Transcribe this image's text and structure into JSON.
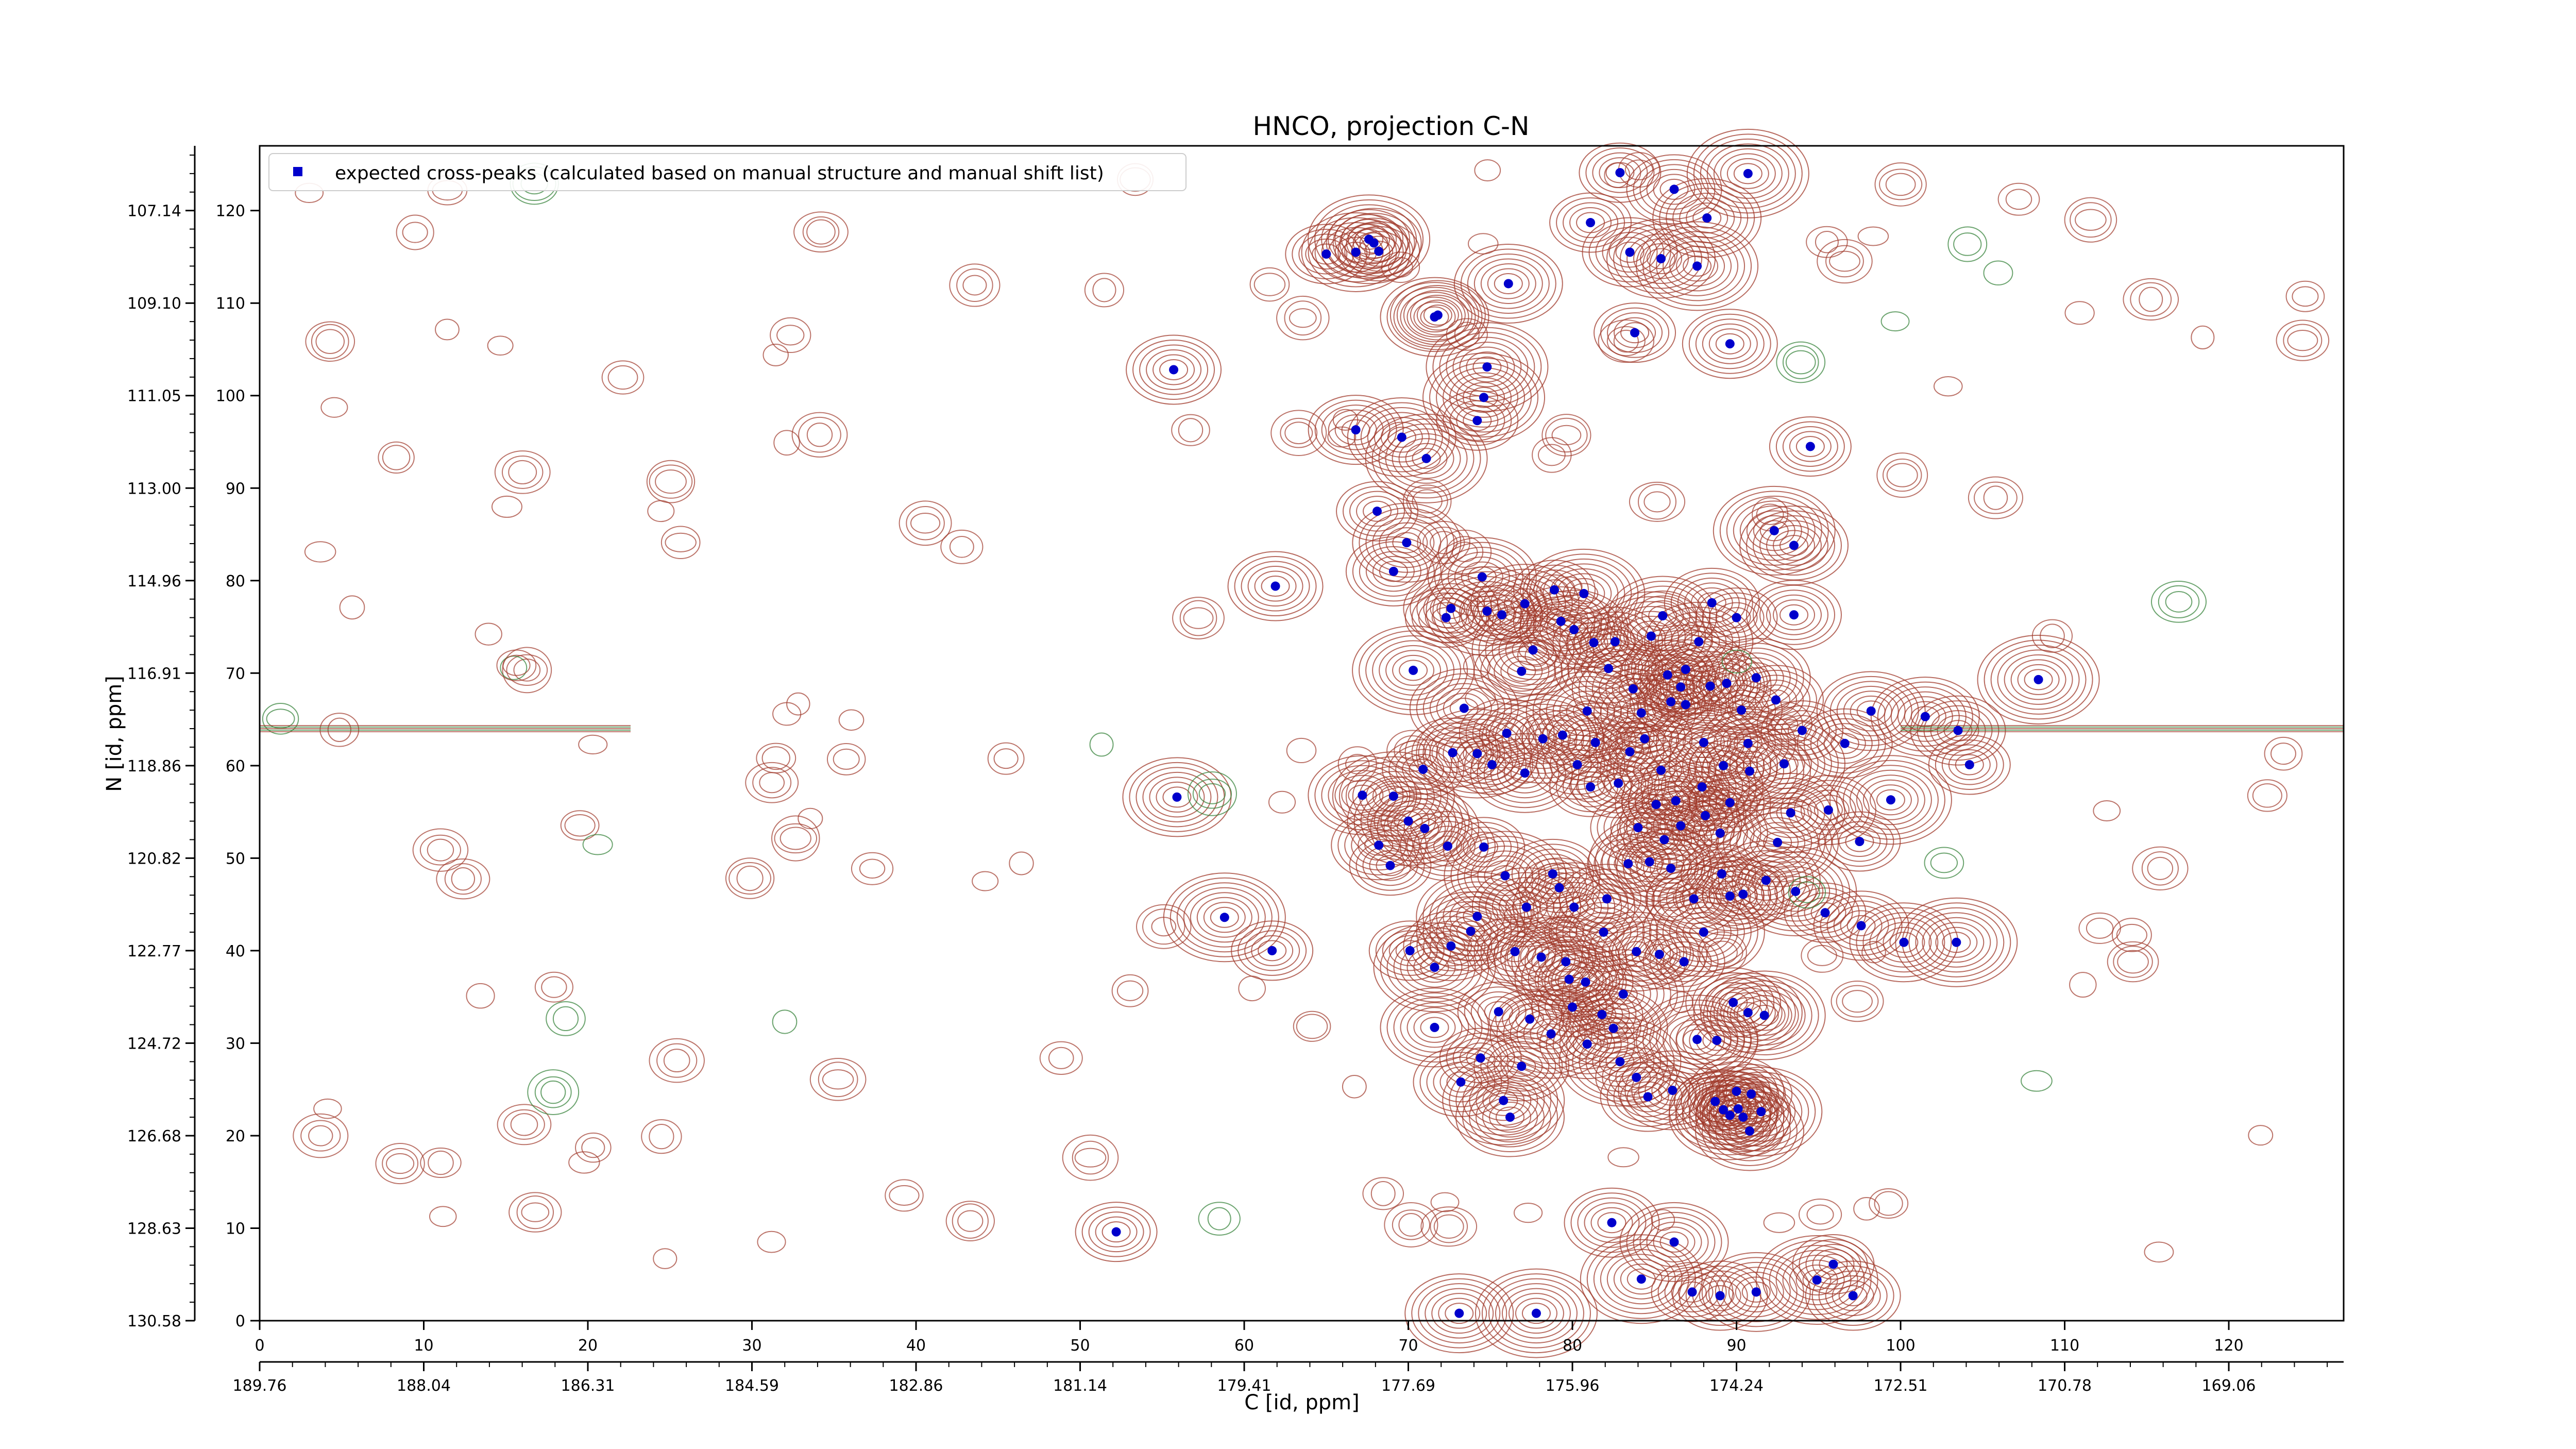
{
  "chart_data": {
    "type": "scatter",
    "title": "HNCO, projection C-N",
    "xlabel": "C [id, ppm]",
    "ylabel": "N [id, ppm]",
    "xlim": [
      0,
      127
    ],
    "ylim": [
      0,
      127
    ],
    "x_ticks": [
      0,
      10,
      20,
      30,
      40,
      50,
      60,
      70,
      80,
      90,
      100,
      110,
      120
    ],
    "y_ticks": [
      0,
      10,
      20,
      30,
      40,
      50,
      60,
      70,
      80,
      90,
      100,
      110,
      120
    ],
    "secondary_x_ticks": [
      "189.76",
      "188.04",
      "186.31",
      "184.59",
      "182.86",
      "181.14",
      "179.41",
      "177.69",
      "175.96",
      "174.24",
      "172.51",
      "170.78",
      "169.06"
    ],
    "secondary_y_ticks": [
      "130.58",
      "128.63",
      "126.68",
      "124.72",
      "122.77",
      "120.82",
      "118.86",
      "116.91",
      "114.96",
      "113.00",
      "111.05",
      "109.10",
      "107.14"
    ],
    "legend": {
      "position": "top-left",
      "label": "expected cross-peaks (calculated based on manual structure and manual shift list)"
    },
    "grid": false,
    "colors": {
      "marker": "#0000cc",
      "contour_positive": "#a0392b",
      "contour_negative": "#2e7d32"
    },
    "series": [
      {
        "name": "expected cross-peaks (calculated based on manual structure and manual shift list)",
        "points": [
          [
            52.2,
            9.6
          ],
          [
            55.7,
            102.8
          ],
          [
            55.9,
            56.6
          ],
          [
            58.8,
            43.6
          ],
          [
            61.7,
            40.0
          ],
          [
            61.9,
            79.4
          ],
          [
            66.8,
            115.5
          ],
          [
            67.6,
            116.9
          ],
          [
            68.2,
            115.6
          ],
          [
            71.8,
            108.7
          ],
          [
            76.1,
            112.1
          ],
          [
            74.8,
            103.1
          ],
          [
            82.9,
            124.1
          ],
          [
            86.2,
            122.3
          ],
          [
            88.2,
            119.2
          ],
          [
            90.7,
            124.0
          ],
          [
            81.1,
            118.7
          ],
          [
            83.5,
            115.5
          ],
          [
            85.4,
            114.8
          ],
          [
            87.6,
            114.0
          ],
          [
            83.8,
            106.8
          ],
          [
            89.6,
            105.6
          ],
          [
            71.6,
            108.5
          ],
          [
            74.6,
            99.8
          ],
          [
            74.2,
            97.3
          ],
          [
            66.8,
            96.3
          ],
          [
            69.6,
            95.5
          ],
          [
            71.1,
            93.2
          ],
          [
            68.1,
            87.5
          ],
          [
            69.1,
            81.0
          ],
          [
            69.9,
            84.1
          ],
          [
            70.3,
            70.3
          ],
          [
            72.3,
            76.0
          ],
          [
            72.6,
            77.0
          ],
          [
            74.5,
            80.4
          ],
          [
            74.8,
            76.7
          ],
          [
            75.7,
            76.3
          ],
          [
            76.9,
            70.2
          ],
          [
            77.1,
            77.5
          ],
          [
            77.6,
            72.5
          ],
          [
            78.9,
            79.0
          ],
          [
            79.3,
            75.6
          ],
          [
            80.1,
            74.7
          ],
          [
            80.7,
            78.6
          ],
          [
            81.3,
            73.3
          ],
          [
            82.6,
            73.4
          ],
          [
            82.2,
            70.5
          ],
          [
            83.7,
            68.3
          ],
          [
            83.5,
            61.5
          ],
          [
            84.4,
            62.9
          ],
          [
            84.2,
            65.7
          ],
          [
            85.4,
            59.5
          ],
          [
            85.1,
            55.8
          ],
          [
            84.0,
            53.3
          ],
          [
            85.6,
            52.0
          ],
          [
            86.6,
            53.5
          ],
          [
            88.1,
            54.6
          ],
          [
            89.0,
            52.7
          ],
          [
            89.2,
            60.0
          ],
          [
            90.8,
            59.4
          ],
          [
            90.3,
            66.0
          ],
          [
            92.4,
            67.1
          ],
          [
            91.2,
            69.5
          ],
          [
            92.9,
            60.2
          ],
          [
            94.0,
            63.8
          ],
          [
            96.6,
            62.4
          ],
          [
            98.2,
            65.9
          ],
          [
            99.4,
            56.3
          ],
          [
            97.5,
            51.8
          ],
          [
            95.6,
            55.2
          ],
          [
            93.3,
            54.9
          ],
          [
            92.5,
            51.7
          ],
          [
            89.1,
            48.3
          ],
          [
            87.4,
            45.6
          ],
          [
            86.0,
            48.9
          ],
          [
            84.7,
            49.6
          ],
          [
            83.4,
            49.4
          ],
          [
            82.1,
            45.6
          ],
          [
            81.9,
            42.0
          ],
          [
            80.1,
            44.7
          ],
          [
            79.2,
            46.8
          ],
          [
            78.8,
            48.3
          ],
          [
            77.2,
            44.7
          ],
          [
            75.9,
            48.1
          ],
          [
            74.6,
            51.2
          ],
          [
            72.4,
            51.3
          ],
          [
            71.0,
            53.2
          ],
          [
            70.0,
            54.0
          ],
          [
            68.9,
            49.2
          ],
          [
            68.2,
            51.4
          ],
          [
            67.2,
            56.8
          ],
          [
            69.1,
            56.7
          ],
          [
            70.9,
            59.6
          ],
          [
            72.7,
            61.4
          ],
          [
            73.4,
            66.2
          ],
          [
            74.2,
            61.3
          ],
          [
            75.1,
            60.1
          ],
          [
            76.0,
            63.5
          ],
          [
            77.1,
            59.2
          ],
          [
            78.2,
            62.9
          ],
          [
            79.4,
            63.3
          ],
          [
            80.3,
            60.1
          ],
          [
            81.4,
            62.5
          ],
          [
            80.9,
            65.9
          ],
          [
            81.1,
            57.7
          ],
          [
            82.8,
            58.1
          ],
          [
            86.3,
            56.2
          ],
          [
            87.9,
            57.7
          ],
          [
            89.6,
            56.0
          ],
          [
            90.4,
            46.1
          ],
          [
            91.8,
            47.6
          ],
          [
            93.6,
            46.4
          ],
          [
            95.4,
            44.1
          ],
          [
            97.6,
            42.7
          ],
          [
            100.2,
            40.9
          ],
          [
            103.4,
            40.9
          ],
          [
            104.2,
            60.1
          ],
          [
            103.5,
            63.8
          ],
          [
            101.5,
            65.3
          ],
          [
            108.4,
            69.3
          ],
          [
            94.5,
            94.5
          ],
          [
            93.5,
            76.3
          ],
          [
            93.5,
            83.8
          ],
          [
            92.3,
            85.4
          ],
          [
            90.0,
            76.0
          ],
          [
            88.5,
            77.6
          ],
          [
            87.7,
            73.4
          ],
          [
            86.9,
            70.4
          ],
          [
            86.6,
            68.5
          ],
          [
            85.8,
            69.8
          ],
          [
            85.5,
            76.2
          ],
          [
            84.8,
            74.0
          ],
          [
            86.0,
            66.9
          ],
          [
            86.9,
            66.6
          ],
          [
            88.0,
            62.5
          ],
          [
            88.4,
            68.6
          ],
          [
            89.4,
            68.9
          ],
          [
            90.7,
            62.4
          ],
          [
            89.6,
            45.9
          ],
          [
            88.0,
            42.0
          ],
          [
            86.8,
            38.8
          ],
          [
            85.3,
            39.6
          ],
          [
            83.9,
            39.9
          ],
          [
            83.1,
            35.3
          ],
          [
            81.8,
            33.1
          ],
          [
            80.8,
            36.6
          ],
          [
            79.8,
            36.9
          ],
          [
            78.7,
            31.0
          ],
          [
            77.4,
            32.6
          ],
          [
            76.9,
            27.5
          ],
          [
            76.2,
            22.0
          ],
          [
            75.8,
            23.8
          ],
          [
            74.4,
            28.4
          ],
          [
            73.2,
            25.8
          ],
          [
            71.6,
            31.7
          ],
          [
            71.6,
            38.2
          ],
          [
            70.1,
            40.0
          ],
          [
            72.6,
            40.5
          ],
          [
            73.8,
            42.1
          ],
          [
            74.2,
            43.7
          ],
          [
            75.5,
            33.4
          ],
          [
            76.5,
            39.9
          ],
          [
            78.1,
            39.3
          ],
          [
            79.6,
            38.8
          ],
          [
            80.0,
            33.9
          ],
          [
            80.9,
            29.9
          ],
          [
            82.5,
            31.6
          ],
          [
            82.9,
            28.0
          ],
          [
            83.9,
            26.3
          ],
          [
            84.6,
            24.2
          ],
          [
            86.1,
            24.9
          ],
          [
            87.6,
            30.4
          ],
          [
            88.8,
            30.3
          ],
          [
            89.8,
            34.4
          ],
          [
            90.7,
            33.3
          ],
          [
            91.7,
            33.0
          ],
          [
            90.9,
            24.5
          ],
          [
            90.0,
            24.8
          ],
          [
            89.2,
            22.8
          ],
          [
            89.6,
            22.2
          ],
          [
            90.1,
            22.9
          ],
          [
            90.4,
            22.0
          ],
          [
            90.8,
            20.5
          ],
          [
            91.5,
            22.6
          ],
          [
            88.7,
            23.7
          ],
          [
            82.4,
            10.6
          ],
          [
            86.2,
            8.5
          ],
          [
            84.2,
            4.5
          ],
          [
            87.3,
            3.1
          ],
          [
            89.0,
            2.7
          ],
          [
            91.2,
            3.1
          ],
          [
            94.9,
            4.4
          ],
          [
            95.9,
            6.1
          ],
          [
            97.1,
            2.7
          ],
          [
            73.1,
            0.8
          ],
          [
            77.8,
            0.8
          ],
          [
            65.0,
            115.3
          ],
          [
            67.9,
            116.5
          ]
        ]
      }
    ]
  }
}
